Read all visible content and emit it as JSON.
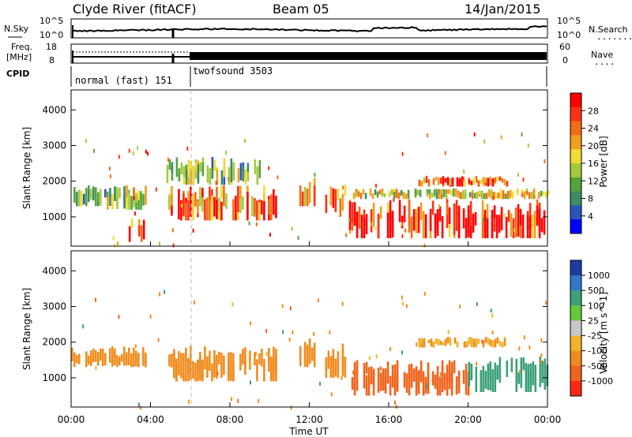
{
  "header": {
    "station": "Clyde River (fitACF)",
    "beam": "Beam 05",
    "date": "14/Jan/2015"
  },
  "top_panels": {
    "noise": {
      "left_label": "N.Sky",
      "right_label": "N.Search",
      "left_ticks": [
        "10^5",
        "10^0"
      ],
      "right_ticks": [
        "10^5",
        "10^0"
      ],
      "right_legend": "........"
    },
    "freq": {
      "left_label_1": "Freq.",
      "left_label_2": "[MHz]",
      "right_label": "Nave",
      "left_ticks": [
        "18",
        "8"
      ],
      "right_ticks": [
        "60",
        "0"
      ],
      "right_legend": "...."
    },
    "cpid": {
      "label": "CPID",
      "modes": [
        {
          "text": "normal (fast) 151",
          "start_hour": 0
        },
        {
          "text": "twofsound 3503",
          "start_hour": 6
        }
      ]
    }
  },
  "power_panel": {
    "ylabel": "Slant Range [km]",
    "yticks": [
      "4000",
      "3000",
      "2000",
      "1000"
    ],
    "colorbar_label": "Power [dB]",
    "colorbar_ticks": [
      "28",
      "24",
      "20",
      "16",
      "12",
      "8",
      "4"
    ],
    "colors": [
      "#0000ff",
      "#2a56b8",
      "#3c8c64",
      "#56a33c",
      "#a8c83c",
      "#f0dc32",
      "#f0a01e",
      "#f06e14",
      "#ff3214",
      "#ff0000"
    ]
  },
  "velocity_panel": {
    "ylabel": "Slant Range [km]",
    "yticks": [
      "4000",
      "3000",
      "2000",
      "1000"
    ],
    "colorbar_label": "Velocity [m s^-1]",
    "colorbar_ticks": [
      "1000",
      "500",
      "100",
      "25",
      "-25",
      "-100",
      "-500",
      "-1000"
    ],
    "colors": [
      "#1e3ca0",
      "#3278c8",
      "#3ca078",
      "#64c83c",
      "#c8c8c8",
      "#f0b428",
      "#f08c1e",
      "#f0641e",
      "#ff2814"
    ]
  },
  "x_axis": {
    "ticks": [
      "00:00",
      "04:00",
      "08:00",
      "12:00",
      "16:00",
      "20:00",
      "00:00"
    ],
    "label": "Time UT"
  },
  "chart_data": {
    "type": "heatmap",
    "x_range_hours": [
      0,
      24
    ],
    "y_range_km": [
      180,
      4560
    ],
    "power_clusters_db": [
      {
        "t0": 0.0,
        "t1": 1.8,
        "r0": 1300,
        "r1": 1900,
        "v": 10
      },
      {
        "t0": 1.8,
        "t1": 3.8,
        "r0": 1200,
        "r1": 1900,
        "v": 14
      },
      {
        "t0": 2.9,
        "t1": 3.7,
        "r0": 300,
        "r1": 1000,
        "v": 26
      },
      {
        "t0": 4.9,
        "t1": 10.3,
        "r0": 900,
        "r1": 1900,
        "v": 22
      },
      {
        "t0": 4.8,
        "t1": 9.5,
        "r0": 1900,
        "r1": 2700,
        "v": 12
      },
      {
        "t0": 11.5,
        "t1": 12.3,
        "r0": 1300,
        "r1": 2100,
        "v": 18
      },
      {
        "t0": 12.8,
        "t1": 13.8,
        "r0": 1000,
        "r1": 2000,
        "v": 22
      },
      {
        "t0": 14.0,
        "t1": 24.0,
        "r0": 400,
        "r1": 1500,
        "v": 28
      },
      {
        "t0": 14.2,
        "t1": 24.0,
        "r0": 1500,
        "r1": 1800,
        "v": 16
      },
      {
        "t0": 17.5,
        "t1": 22.0,
        "r0": 1850,
        "r1": 2150,
        "v": 24
      }
    ],
    "velocity_clusters_ms": [
      {
        "t0": 0.0,
        "t1": 3.8,
        "r0": 1300,
        "r1": 1900,
        "v": -150
      },
      {
        "t0": 4.9,
        "t1": 10.3,
        "r0": 900,
        "r1": 1900,
        "v": -200
      },
      {
        "t0": 11.5,
        "t1": 12.3,
        "r0": 1300,
        "r1": 2100,
        "v": -300
      },
      {
        "t0": 12.8,
        "t1": 13.8,
        "r0": 1000,
        "r1": 2000,
        "v": -250
      },
      {
        "t0": 14.0,
        "t1": 20.0,
        "r0": 500,
        "r1": 1500,
        "v": -700
      },
      {
        "t0": 20.0,
        "t1": 24.0,
        "r0": 600,
        "r1": 1600,
        "v": 200
      },
      {
        "t0": 17.5,
        "t1": 22.0,
        "r0": 1850,
        "r1": 2150,
        "v": -100
      }
    ]
  }
}
